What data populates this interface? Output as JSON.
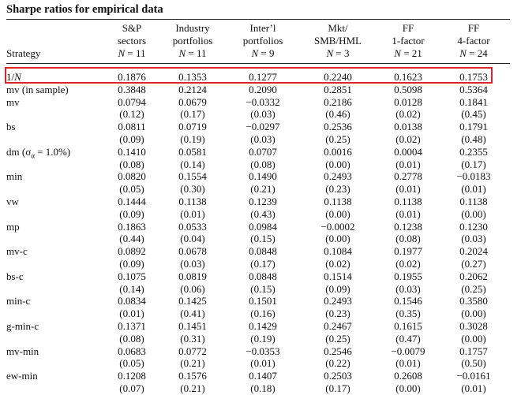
{
  "title": "Sharpe ratios for empirical data",
  "strategy_label": "Strategy",
  "columns": [
    {
      "l1": "S&P",
      "l2": "sectors",
      "n": "11"
    },
    {
      "l1": "Industry",
      "l2": "portfolios",
      "n": "11"
    },
    {
      "l1": "Inter’l",
      "l2": "portfolios",
      "n": "9"
    },
    {
      "l1": "Mkt/",
      "l2": "SMB/HML",
      "n": "3"
    },
    {
      "l1": "FF",
      "l2": "1-factor",
      "n": "21"
    },
    {
      "l1": "FF",
      "l2": "4-factor",
      "n": "24"
    }
  ],
  "n_symbol": "N",
  "rows": [
    {
      "label": "1/N",
      "values": [
        "0.1876",
        "0.1353",
        "0.1277",
        "0.2240",
        "0.1623",
        "0.1753"
      ],
      "pvalues": null,
      "highlight": true
    },
    {
      "label": "mv (in sample)",
      "values": [
        "0.3848",
        "0.2124",
        "0.2090",
        "0.2851",
        "0.5098",
        "0.5364"
      ],
      "pvalues": null
    },
    {
      "label": "mv",
      "values": [
        "0.0794",
        "0.0679",
        "−0.0332",
        "0.2186",
        "0.0128",
        "0.1841"
      ],
      "pvalues": [
        "(0.12)",
        "(0.17)",
        "(0.03)",
        "(0.46)",
        "(0.02)",
        "(0.45)"
      ]
    },
    {
      "label": "bs",
      "values": [
        "0.0811",
        "0.0719",
        "−0.0297",
        "0.2536",
        "0.0138",
        "0.1791"
      ],
      "pvalues": [
        "(0.09)",
        "(0.19)",
        "(0.03)",
        "(0.25)",
        "(0.02)",
        "(0.48)"
      ]
    },
    {
      "label": "dm (σα = 1.0%)",
      "label_parts": [
        "dm (σ",
        "α",
        " = 1.0%)"
      ],
      "values": [
        "0.1410",
        "0.0581",
        "0.0707",
        "0.0016",
        "0.0004",
        "0.2355"
      ],
      "pvalues": [
        "(0.08)",
        "(0.14)",
        "(0.08)",
        "(0.00)",
        "(0.01)",
        "(0.17)"
      ]
    },
    {
      "label": "min",
      "values": [
        "0.0820",
        "0.1554",
        "0.1490",
        "0.2493",
        "0.2778",
        "−0.0183"
      ],
      "pvalues": [
        "(0.05)",
        "(0.30)",
        "(0.21)",
        "(0.23)",
        "(0.01)",
        "(0.01)"
      ]
    },
    {
      "label": "vw",
      "values": [
        "0.1444",
        "0.1138",
        "0.1239",
        "0.1138",
        "0.1138",
        "0.1138"
      ],
      "pvalues": [
        "(0.09)",
        "(0.01)",
        "(0.43)",
        "(0.00)",
        "(0.01)",
        "(0.00)"
      ]
    },
    {
      "label": "mp",
      "values": [
        "0.1863",
        "0.0533",
        "0.0984",
        "−0.0002",
        "0.1238",
        "0.1230"
      ],
      "pvalues": [
        "(0.44)",
        "(0.04)",
        "(0.15)",
        "(0.00)",
        "(0.08)",
        "(0.03)"
      ]
    },
    {
      "label": "mv-c",
      "values": [
        "0.0892",
        "0.0678",
        "0.0848",
        "0.1084",
        "0.1977",
        "0.2024"
      ],
      "pvalues": [
        "(0.09)",
        "(0.03)",
        "(0.17)",
        "(0.02)",
        "(0.02)",
        "(0.27)"
      ]
    },
    {
      "label": "bs-c",
      "values": [
        "0.1075",
        "0.0819",
        "0.0848",
        "0.1514",
        "0.1955",
        "0.2062"
      ],
      "pvalues": [
        "(0.14)",
        "(0.06)",
        "(0.15)",
        "(0.09)",
        "(0.03)",
        "(0.25)"
      ]
    },
    {
      "label": "min-c",
      "values": [
        "0.0834",
        "0.1425",
        "0.1501",
        "0.2493",
        "0.1546",
        "0.3580"
      ],
      "pvalues": [
        "(0.01)",
        "(0.41)",
        "(0.16)",
        "(0.23)",
        "(0.35)",
        "(0.00)"
      ]
    },
    {
      "label": "g-min-c",
      "values": [
        "0.1371",
        "0.1451",
        "0.1429",
        "0.2467",
        "0.1615",
        "0.3028"
      ],
      "pvalues": [
        "(0.08)",
        "(0.31)",
        "(0.19)",
        "(0.25)",
        "(0.47)",
        "(0.00)"
      ]
    },
    {
      "label": "mv-min",
      "values": [
        "0.0683",
        "0.0772",
        "−0.0353",
        "0.2546",
        "−0.0079",
        "0.1757"
      ],
      "pvalues": [
        "(0.05)",
        "(0.21)",
        "(0.01)",
        "(0.22)",
        "(0.01)",
        "(0.50)"
      ]
    },
    {
      "label": "ew-min",
      "values": [
        "0.1208",
        "0.1576",
        "0.1407",
        "0.2503",
        "0.2608",
        "−0.0161"
      ],
      "pvalues": [
        "(0.07)",
        "(0.21)",
        "(0.18)",
        "(0.17)",
        "(0.00)",
        "(0.01)"
      ]
    }
  ],
  "colors": {
    "highlight_border": "#e0242c",
    "text": "#111111"
  }
}
